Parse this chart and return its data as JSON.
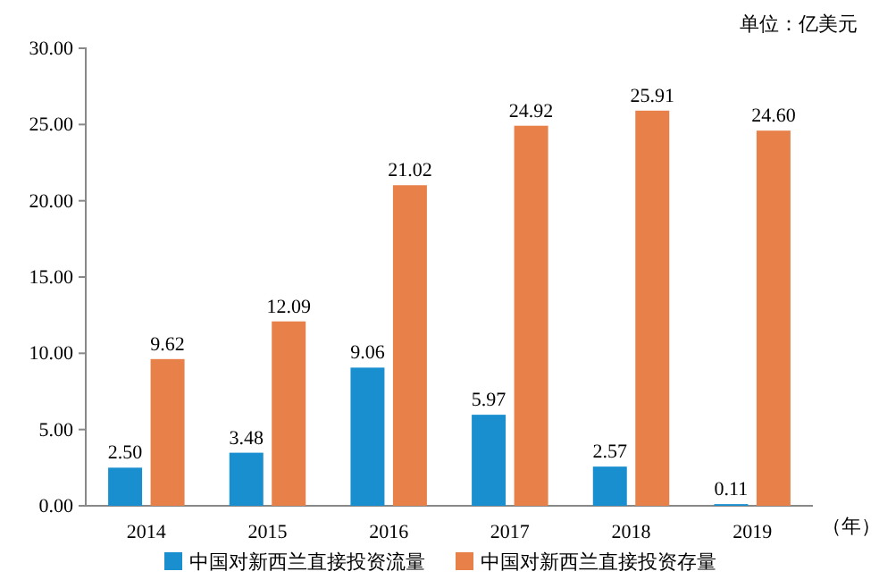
{
  "chart_data": {
    "type": "bar",
    "categories": [
      "2014",
      "2015",
      "2016",
      "2017",
      "2018",
      "2019"
    ],
    "series": [
      {
        "name": "中国对新西兰直接投资流量",
        "color": "#1a8fd0",
        "values": [
          2.5,
          3.48,
          9.06,
          5.97,
          2.57,
          0.11
        ],
        "value_labels": [
          "2.50",
          "3.48",
          "9.06",
          "5.97",
          "2.57",
          "0.11"
        ]
      },
      {
        "name": "中国对新西兰直接投资存量",
        "color": "#e8804a",
        "values": [
          9.62,
          12.09,
          21.02,
          24.92,
          25.91,
          24.6
        ],
        "value_labels": [
          "9.62",
          "12.09",
          "21.02",
          "24.92",
          "25.91",
          "24.60"
        ]
      }
    ],
    "ylim": [
      0,
      30
    ],
    "yticks": [
      {
        "value": 0,
        "label": "0.00"
      },
      {
        "value": 5,
        "label": "5.00"
      },
      {
        "value": 10,
        "label": "10.00"
      },
      {
        "value": 15,
        "label": "15.00"
      },
      {
        "value": 20,
        "label": "20.00"
      },
      {
        "value": 25,
        "label": "25.00"
      },
      {
        "value": 30,
        "label": "30.00"
      }
    ],
    "grid": false,
    "legend": "bottom",
    "annotations": [
      "单位：亿美元",
      "（年）"
    ]
  }
}
